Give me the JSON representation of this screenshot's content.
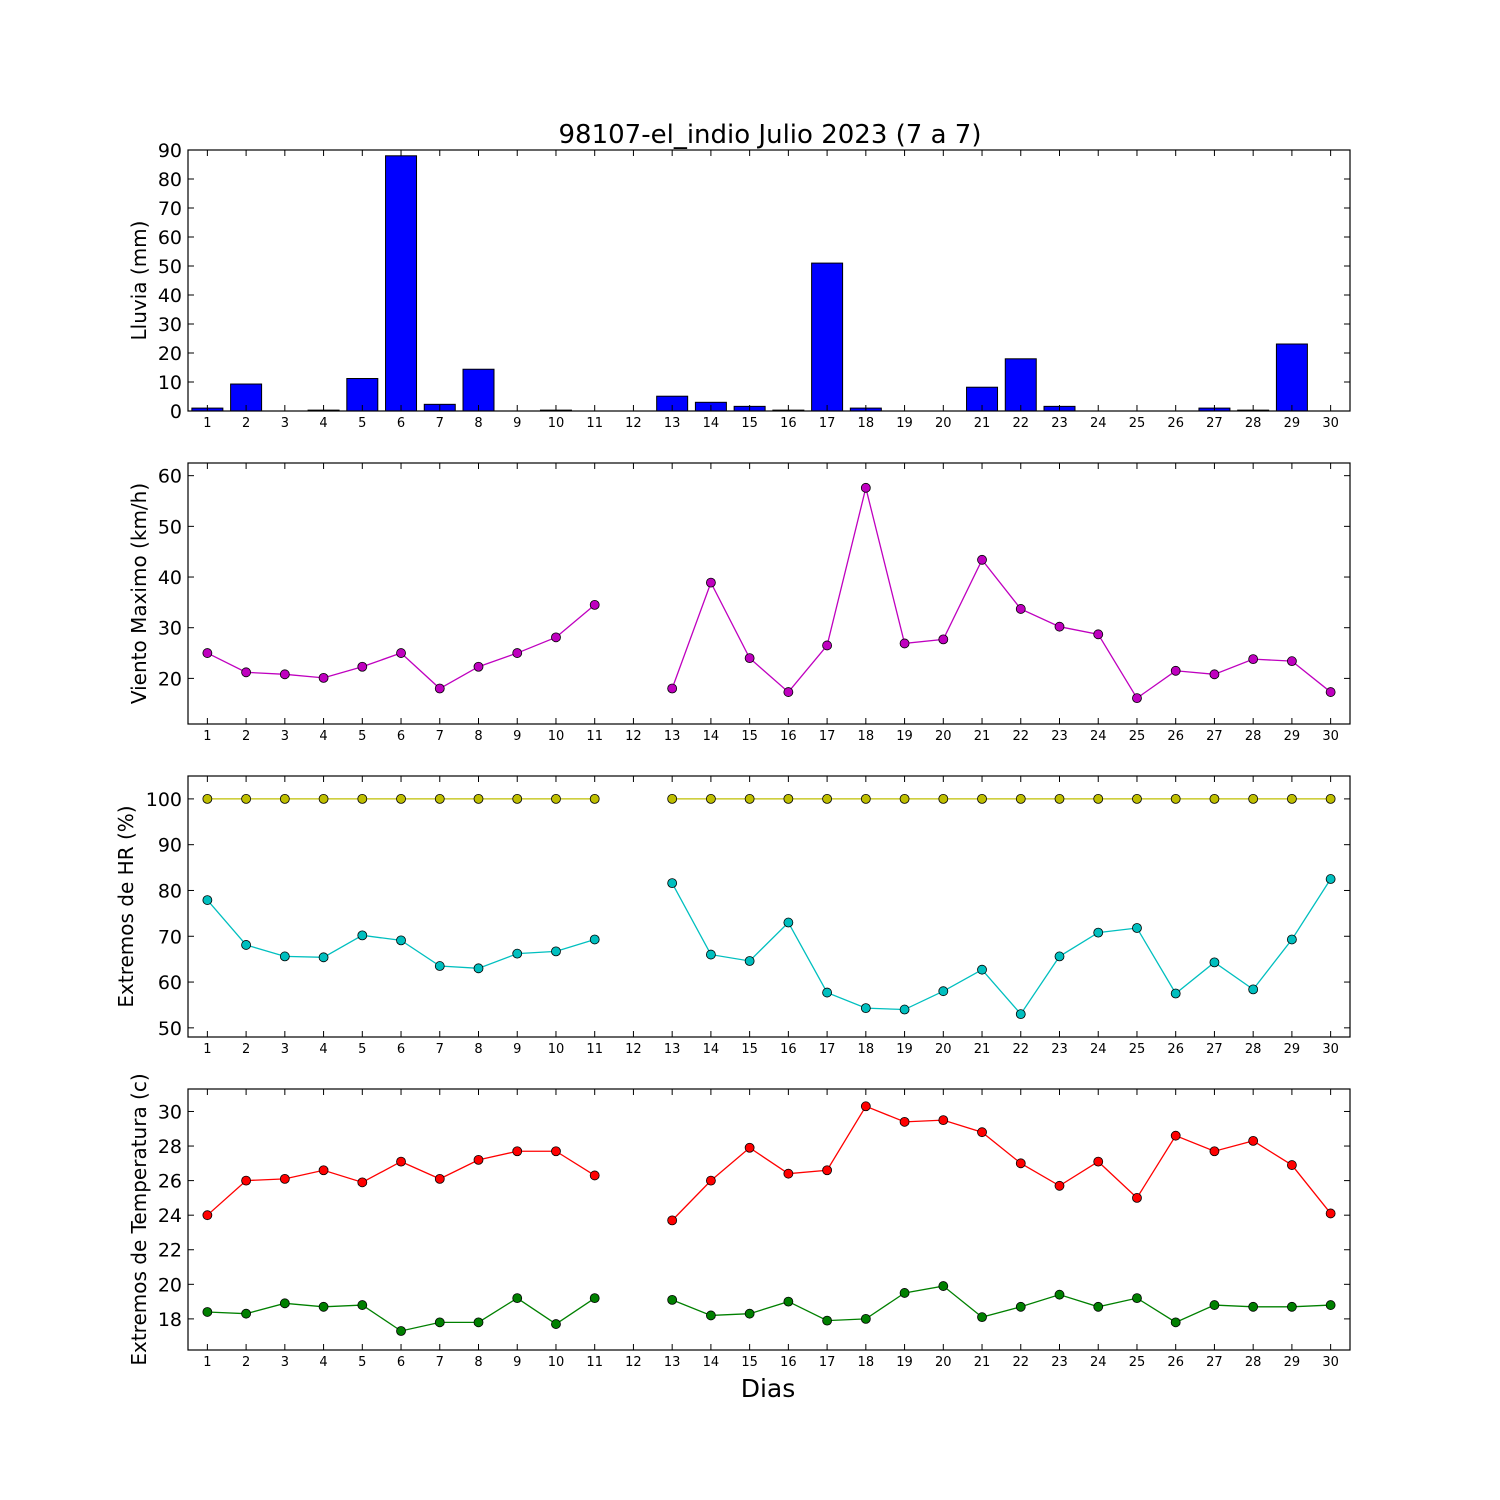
{
  "figure": {
    "title": "98107-el_indio Julio 2023  (7 a 7)",
    "xlabel": "Dias",
    "x_ticks": [
      "1",
      "2",
      "3",
      "4",
      "5",
      "6",
      "7",
      "8",
      "9",
      "10",
      "11",
      "12",
      "13",
      "14",
      "15",
      "16",
      "17",
      "18",
      "19",
      "20",
      "21",
      "22",
      "23",
      "24",
      "25",
      "26",
      "27",
      "28",
      "29",
      "30"
    ]
  },
  "chart_data": [
    {
      "type": "bar",
      "ylabel": "Lluvia (mm)",
      "x": [
        1,
        2,
        3,
        4,
        5,
        6,
        7,
        8,
        9,
        10,
        11,
        12,
        13,
        14,
        15,
        16,
        17,
        18,
        19,
        20,
        21,
        22,
        23,
        24,
        25,
        26,
        27,
        28,
        29,
        30
      ],
      "ylim": [
        0,
        90
      ],
      "yticks": [
        0,
        10,
        20,
        30,
        40,
        50,
        60,
        70,
        80,
        90
      ],
      "xlim": [
        0.5,
        30.5
      ],
      "series": [
        {
          "color": "#0000ff",
          "values": [
            1,
            9.3,
            0,
            0.3,
            11.2,
            88,
            2.3,
            14.4,
            0,
            0.3,
            0,
            0,
            5.1,
            3,
            1.6,
            0.3,
            51,
            1,
            0,
            0,
            8.2,
            18,
            1.6,
            0,
            0,
            0,
            1,
            0.3,
            23.1,
            0
          ]
        }
      ]
    },
    {
      "type": "line",
      "ylabel": "Viento Maximo (km/h)",
      "x": [
        1,
        2,
        3,
        4,
        5,
        6,
        7,
        8,
        9,
        10,
        11,
        12,
        13,
        14,
        15,
        16,
        17,
        18,
        19,
        20,
        21,
        22,
        23,
        24,
        25,
        26,
        27,
        28,
        29,
        30
      ],
      "ylim": [
        11,
        62.5
      ],
      "yticks": [
        20,
        30,
        40,
        50,
        60
      ],
      "xlim": [
        0.5,
        30.5
      ],
      "series": [
        {
          "color": "#bf00bf",
          "values": [
            25,
            21.2,
            20.8,
            20.1,
            22.3,
            25,
            18,
            22.3,
            25,
            28.1,
            34.5,
            null,
            18,
            38.9,
            24,
            17.3,
            26.5,
            57.6,
            26.9,
            27.7,
            43.4,
            33.7,
            30.2,
            28.7,
            16.1,
            21.5,
            20.8,
            23.8,
            23.4,
            17.3
          ]
        }
      ]
    },
    {
      "type": "line",
      "ylabel": "Extremos de HR (%)",
      "x": [
        1,
        2,
        3,
        4,
        5,
        6,
        7,
        8,
        9,
        10,
        11,
        12,
        13,
        14,
        15,
        16,
        17,
        18,
        19,
        20,
        21,
        22,
        23,
        24,
        25,
        26,
        27,
        28,
        29,
        30
      ],
      "ylim": [
        48,
        105
      ],
      "yticks": [
        50,
        60,
        70,
        80,
        90,
        100
      ],
      "xlim": [
        0.5,
        30.5
      ],
      "series": [
        {
          "color": "#bfbf00",
          "values": [
            100,
            100,
            100,
            100,
            100,
            100,
            100,
            100,
            100,
            100,
            100,
            null,
            100,
            100,
            100,
            100,
            100,
            100,
            100,
            100,
            100,
            100,
            100,
            100,
            100,
            100,
            100,
            100,
            100,
            100
          ]
        },
        {
          "color": "#00bfbf",
          "values": [
            77.9,
            68.1,
            65.6,
            65.4,
            70.2,
            69.1,
            63.5,
            63,
            66.2,
            66.7,
            69.3,
            null,
            81.6,
            66,
            64.6,
            73,
            57.7,
            54.3,
            54,
            58,
            62.7,
            53,
            65.6,
            70.8,
            71.8,
            57.5,
            64.3,
            58.4,
            69.3,
            82.5
          ]
        }
      ]
    },
    {
      "type": "line",
      "ylabel": "Extremos de Temperatura (c)",
      "x": [
        1,
        2,
        3,
        4,
        5,
        6,
        7,
        8,
        9,
        10,
        11,
        12,
        13,
        14,
        15,
        16,
        17,
        18,
        19,
        20,
        21,
        22,
        23,
        24,
        25,
        26,
        27,
        28,
        29,
        30
      ],
      "ylim": [
        16.2,
        31.3
      ],
      "yticks": [
        18,
        20,
        22,
        24,
        26,
        28,
        30
      ],
      "xlim": [
        0.5,
        30.5
      ],
      "series": [
        {
          "color": "#ff0000",
          "values": [
            24,
            26,
            26.1,
            26.6,
            25.9,
            27.1,
            26.1,
            27.2,
            27.7,
            27.7,
            26.3,
            null,
            23.7,
            26,
            27.9,
            26.4,
            26.6,
            30.3,
            29.4,
            29.5,
            28.8,
            27,
            25.7,
            27.1,
            25,
            28.6,
            27.7,
            28.3,
            26.9,
            24.1
          ]
        },
        {
          "color": "#008000",
          "values": [
            18.4,
            18.3,
            18.9,
            18.7,
            18.8,
            17.3,
            17.8,
            17.8,
            19.2,
            17.7,
            19.2,
            null,
            19.1,
            18.2,
            18.3,
            19,
            17.9,
            18,
            19.5,
            19.9,
            18.1,
            18.7,
            19.4,
            18.7,
            19.2,
            17.8,
            18.8,
            18.7,
            18.7,
            18.8
          ]
        }
      ]
    }
  ]
}
